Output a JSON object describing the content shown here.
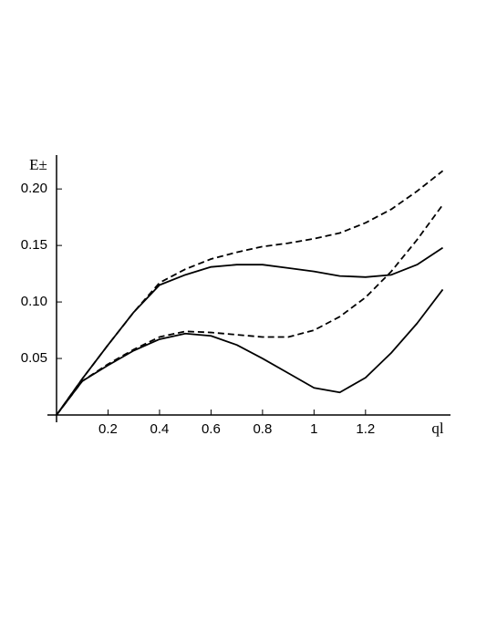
{
  "chart_data": {
    "type": "line",
    "y_label": "E±",
    "x_label": "ql",
    "x": [
      0,
      0.1,
      0.2,
      0.3,
      0.4,
      0.5,
      0.6,
      0.7,
      0.8,
      0.9,
      1.0,
      1.1,
      1.2,
      1.3,
      1.4,
      1.5
    ],
    "series": [
      {
        "color": "#000000",
        "dashed": true,
        "values": [
          0,
          0.032,
          0.062,
          0.091,
          0.117,
          0.129,
          0.138,
          0.144,
          0.149,
          0.152,
          0.156,
          0.161,
          0.17,
          0.182,
          0.198,
          0.216
        ]
      },
      {
        "color": "#000000",
        "dashed": false,
        "values": [
          0,
          0.032,
          0.062,
          0.091,
          0.115,
          0.124,
          0.131,
          0.133,
          0.133,
          0.13,
          0.127,
          0.123,
          0.122,
          0.124,
          0.133,
          0.148
        ]
      },
      {
        "color": "#000000",
        "dashed": true,
        "values": [
          0,
          0.03,
          0.045,
          0.058,
          0.069,
          0.074,
          0.073,
          0.071,
          0.069,
          0.069,
          0.075,
          0.087,
          0.104,
          0.127,
          0.155,
          0.186
        ]
      },
      {
        "color": "#000000",
        "dashed": false,
        "values": [
          0,
          0.03,
          0.044,
          0.057,
          0.067,
          0.072,
          0.07,
          0.062,
          0.05,
          0.037,
          0.024,
          0.02,
          0.033,
          0.055,
          0.081,
          0.111
        ]
      }
    ],
    "xlim": [
      0,
      1.53
    ],
    "ylim": [
      0,
      0.23
    ],
    "xticks": [
      0.2,
      0.4,
      0.6,
      0.8,
      1,
      1.2
    ],
    "yticks": [
      0.05,
      {
        "value": 0.1,
        "label": "0.10"
      },
      0.15,
      {
        "value": 0.2,
        "label": "0.20"
      }
    ],
    "grid": false
  }
}
